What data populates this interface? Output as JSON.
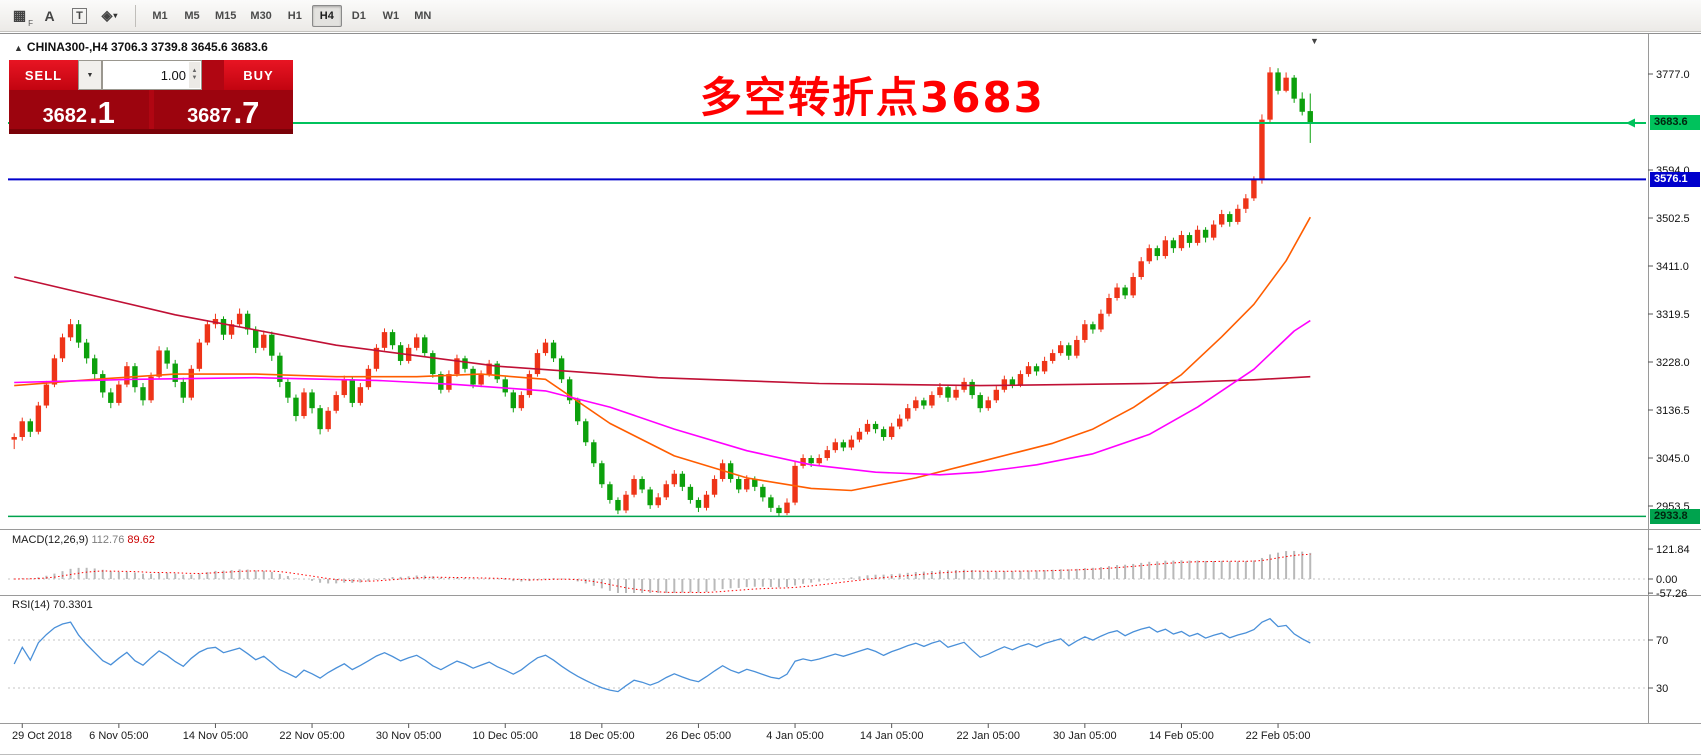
{
  "toolbar": {
    "tools": [
      {
        "name": "chart-grid-icon",
        "glyph": "▦",
        "sub": "F"
      },
      {
        "name": "text-annotation-icon",
        "glyph": "A"
      },
      {
        "name": "text-box-tool-icon",
        "glyph": "T",
        "boxed": true
      },
      {
        "name": "shapes-tool-icon",
        "glyph": "◈",
        "caret": true
      }
    ],
    "timeframes": [
      "M1",
      "M5",
      "M15",
      "M30",
      "H1",
      "H4",
      "D1",
      "W1",
      "MN"
    ],
    "active_timeframe": "H4"
  },
  "chart": {
    "title": "CHINA300-,H4  3706.3 3739.8 3645.6 3683.6",
    "annotation": "多空转折点3683",
    "trade_panel": {
      "sell_label": "SELL",
      "buy_label": "BUY",
      "volume": "1.00",
      "bid_int": "3682",
      "bid_dec": ".1",
      "ask_int": "3687",
      "ask_dec": ".7"
    },
    "price_axis": {
      "labels": [
        "3777.0",
        "3594.0",
        "3502.5",
        "3411.0",
        "3319.5",
        "3228.0",
        "3136.5",
        "3045.0",
        "2953.5"
      ]
    },
    "hlines": [
      {
        "price": 3683.6,
        "label": "3683.6",
        "color": "#00c25c",
        "text_color": "#00260f",
        "width": 2,
        "arrow": true
      },
      {
        "price": 3576.1,
        "label": "3576.1",
        "color": "#0000cc",
        "text_color": "#ffffff",
        "width": 2,
        "arrow": false
      },
      {
        "price": 2933.8,
        "label": "2933.8",
        "color": "#00a34e",
        "text_color": "#00260f",
        "width": 1.5,
        "arrow": false
      }
    ],
    "time_axis": [
      {
        "label": "29 Oct 2018",
        "idx": 1
      },
      {
        "label": "6 Nov 05:00",
        "idx": 13
      },
      {
        "label": "14 Nov 05:00",
        "idx": 25
      },
      {
        "label": "22 Nov 05:00",
        "idx": 37
      },
      {
        "label": "30 Nov 05:00",
        "idx": 49
      },
      {
        "label": "10 Dec 05:00",
        "idx": 61
      },
      {
        "label": "18 Dec 05:00",
        "idx": 73
      },
      {
        "label": "26 Dec 05:00",
        "idx": 85
      },
      {
        "label": "4 Jan 05:00",
        "idx": 97
      },
      {
        "label": "14 Jan 05:00",
        "idx": 109
      },
      {
        "label": "22 Jan 05:00",
        "idx": 121
      },
      {
        "label": "30 Jan 05:00",
        "idx": 133
      },
      {
        "label": "14 Feb 05:00",
        "idx": 145
      },
      {
        "label": "22 Feb 05:00",
        "idx": 157
      }
    ]
  },
  "chart_data": {
    "type": "candlestick",
    "symbol": "CHINA300-",
    "timeframe": "H4",
    "colors": {
      "up": "#ee3418",
      "down": "#0ca00c"
    },
    "candles": [
      [
        3080,
        3092,
        3062,
        3085
      ],
      [
        3085,
        3122,
        3078,
        3115
      ],
      [
        3115,
        3120,
        3085,
        3095
      ],
      [
        3095,
        3152,
        3090,
        3145
      ],
      [
        3145,
        3192,
        3140,
        3185
      ],
      [
        3185,
        3242,
        3180,
        3235
      ],
      [
        3235,
        3282,
        3228,
        3275
      ],
      [
        3275,
        3310,
        3268,
        3300
      ],
      [
        3300,
        3308,
        3255,
        3265
      ],
      [
        3265,
        3272,
        3225,
        3235
      ],
      [
        3235,
        3242,
        3195,
        3205
      ],
      [
        3205,
        3212,
        3160,
        3170
      ],
      [
        3170,
        3178,
        3140,
        3150
      ],
      [
        3150,
        3192,
        3145,
        3185
      ],
      [
        3185,
        3228,
        3180,
        3220
      ],
      [
        3220,
        3226,
        3170,
        3180
      ],
      [
        3180,
        3188,
        3145,
        3155
      ],
      [
        3155,
        3208,
        3150,
        3200
      ],
      [
        3200,
        3258,
        3195,
        3250
      ],
      [
        3250,
        3256,
        3215,
        3225
      ],
      [
        3225,
        3232,
        3180,
        3190
      ],
      [
        3190,
        3198,
        3150,
        3160
      ],
      [
        3160,
        3222,
        3155,
        3215
      ],
      [
        3215,
        3272,
        3210,
        3265
      ],
      [
        3265,
        3308,
        3260,
        3300
      ],
      [
        3300,
        3320,
        3292,
        3310
      ],
      [
        3310,
        3315,
        3270,
        3280
      ],
      [
        3280,
        3308,
        3272,
        3300
      ],
      [
        3300,
        3330,
        3295,
        3320
      ],
      [
        3320,
        3326,
        3280,
        3290
      ],
      [
        3290,
        3296,
        3245,
        3255
      ],
      [
        3255,
        3288,
        3250,
        3280
      ],
      [
        3280,
        3286,
        3230,
        3240
      ],
      [
        3240,
        3246,
        3180,
        3190
      ],
      [
        3190,
        3198,
        3150,
        3160
      ],
      [
        3160,
        3166,
        3115,
        3125
      ],
      [
        3125,
        3178,
        3120,
        3170
      ],
      [
        3170,
        3176,
        3130,
        3140
      ],
      [
        3140,
        3146,
        3090,
        3100
      ],
      [
        3100,
        3142,
        3095,
        3135
      ],
      [
        3135,
        3172,
        3130,
        3165
      ],
      [
        3165,
        3202,
        3160,
        3195
      ],
      [
        3195,
        3200,
        3142,
        3150
      ],
      [
        3150,
        3188,
        3145,
        3180
      ],
      [
        3180,
        3222,
        3175,
        3215
      ],
      [
        3215,
        3262,
        3210,
        3255
      ],
      [
        3255,
        3292,
        3250,
        3285
      ],
      [
        3285,
        3290,
        3252,
        3260
      ],
      [
        3260,
        3266,
        3222,
        3230
      ],
      [
        3230,
        3262,
        3225,
        3255
      ],
      [
        3255,
        3282,
        3250,
        3275
      ],
      [
        3275,
        3280,
        3238,
        3245
      ],
      [
        3245,
        3250,
        3198,
        3205
      ],
      [
        3205,
        3210,
        3168,
        3175
      ],
      [
        3175,
        3212,
        3170,
        3205
      ],
      [
        3205,
        3242,
        3200,
        3235
      ],
      [
        3235,
        3240,
        3208,
        3215
      ],
      [
        3215,
        3220,
        3178,
        3185
      ],
      [
        3185,
        3212,
        3180,
        3205
      ],
      [
        3205,
        3232,
        3200,
        3225
      ],
      [
        3225,
        3230,
        3188,
        3195
      ],
      [
        3195,
        3200,
        3162,
        3170
      ],
      [
        3170,
        3175,
        3132,
        3140
      ],
      [
        3140,
        3172,
        3135,
        3165
      ],
      [
        3165,
        3212,
        3160,
        3205
      ],
      [
        3205,
        3252,
        3200,
        3245
      ],
      [
        3245,
        3272,
        3240,
        3265
      ],
      [
        3265,
        3270,
        3228,
        3235
      ],
      [
        3235,
        3240,
        3188,
        3195
      ],
      [
        3195,
        3200,
        3148,
        3155
      ],
      [
        3155,
        3160,
        3108,
        3115
      ],
      [
        3115,
        3120,
        3068,
        3075
      ],
      [
        3075,
        3080,
        3028,
        3035
      ],
      [
        3035,
        3040,
        2988,
        2995
      ],
      [
        2995,
        3000,
        2958,
        2965
      ],
      [
        2965,
        2970,
        2938,
        2945
      ],
      [
        2945,
        2982,
        2940,
        2975
      ],
      [
        2975,
        3012,
        2970,
        3005
      ],
      [
        3005,
        3010,
        2978,
        2985
      ],
      [
        2985,
        2990,
        2948,
        2955
      ],
      [
        2955,
        2978,
        2950,
        2970
      ],
      [
        2970,
        3002,
        2965,
        2995
      ],
      [
        2995,
        3022,
        2990,
        3015
      ],
      [
        3015,
        3020,
        2982,
        2990
      ],
      [
        2990,
        2995,
        2958,
        2965
      ],
      [
        2965,
        2970,
        2942,
        2950
      ],
      [
        2950,
        2982,
        2945,
        2975
      ],
      [
        2975,
        3012,
        2970,
        3005
      ],
      [
        3005,
        3042,
        3000,
        3035
      ],
      [
        3035,
        3040,
        2998,
        3005
      ],
      [
        3005,
        3010,
        2978,
        2985
      ],
      [
        2985,
        3012,
        2980,
        3005
      ],
      [
        3005,
        3010,
        2982,
        2990
      ],
      [
        2990,
        2995,
        2962,
        2970
      ],
      [
        2970,
        2975,
        2942,
        2950
      ],
      [
        2950,
        2955,
        2933.8,
        2940
      ],
      [
        2940,
        2968,
        2936,
        2960
      ],
      [
        2960,
        3038,
        2955,
        3030
      ],
      [
        3030,
        3052,
        3025,
        3045
      ],
      [
        3045,
        3050,
        3028,
        3035
      ],
      [
        3035,
        3052,
        3030,
        3045
      ],
      [
        3045,
        3068,
        3040,
        3060
      ],
      [
        3060,
        3082,
        3055,
        3075
      ],
      [
        3075,
        3080,
        3058,
        3065
      ],
      [
        3065,
        3088,
        3060,
        3080
      ],
      [
        3080,
        3102,
        3075,
        3095
      ],
      [
        3095,
        3118,
        3090,
        3110
      ],
      [
        3110,
        3115,
        3092,
        3100
      ],
      [
        3100,
        3105,
        3078,
        3085
      ],
      [
        3085,
        3112,
        3080,
        3105
      ],
      [
        3105,
        3128,
        3100,
        3120
      ],
      [
        3120,
        3148,
        3115,
        3140
      ],
      [
        3140,
        3162,
        3135,
        3155
      ],
      [
        3155,
        3160,
        3138,
        3145
      ],
      [
        3145,
        3172,
        3140,
        3165
      ],
      [
        3165,
        3188,
        3160,
        3180
      ],
      [
        3180,
        3185,
        3152,
        3160
      ],
      [
        3160,
        3182,
        3155,
        3175
      ],
      [
        3175,
        3198,
        3170,
        3190
      ],
      [
        3190,
        3195,
        3158,
        3165
      ],
      [
        3165,
        3170,
        3132,
        3140
      ],
      [
        3140,
        3162,
        3135,
        3155
      ],
      [
        3155,
        3182,
        3150,
        3175
      ],
      [
        3175,
        3202,
        3170,
        3195
      ],
      [
        3195,
        3200,
        3178,
        3185
      ],
      [
        3185,
        3212,
        3180,
        3205
      ],
      [
        3205,
        3228,
        3200,
        3220
      ],
      [
        3220,
        3225,
        3202,
        3210
      ],
      [
        3210,
        3238,
        3205,
        3230
      ],
      [
        3230,
        3252,
        3225,
        3245
      ],
      [
        3245,
        3268,
        3240,
        3260
      ],
      [
        3260,
        3265,
        3232,
        3240
      ],
      [
        3240,
        3278,
        3235,
        3270
      ],
      [
        3270,
        3308,
        3265,
        3300
      ],
      [
        3300,
        3305,
        3282,
        3290
      ],
      [
        3290,
        3328,
        3285,
        3320
      ],
      [
        3320,
        3358,
        3315,
        3350
      ],
      [
        3350,
        3378,
        3345,
        3370
      ],
      [
        3370,
        3375,
        3348,
        3355
      ],
      [
        3355,
        3398,
        3350,
        3390
      ],
      [
        3390,
        3428,
        3385,
        3420
      ],
      [
        3420,
        3452,
        3415,
        3445
      ],
      [
        3445,
        3450,
        3422,
        3430
      ],
      [
        3430,
        3468,
        3425,
        3460
      ],
      [
        3460,
        3465,
        3436,
        3445
      ],
      [
        3445,
        3478,
        3440,
        3470
      ],
      [
        3470,
        3475,
        3446,
        3455
      ],
      [
        3455,
        3488,
        3450,
        3480
      ],
      [
        3480,
        3485,
        3456,
        3465
      ],
      [
        3465,
        3498,
        3460,
        3490
      ],
      [
        3490,
        3518,
        3485,
        3510
      ],
      [
        3510,
        3515,
        3486,
        3495
      ],
      [
        3495,
        3528,
        3490,
        3520
      ],
      [
        3520,
        3548,
        3512,
        3540
      ],
      [
        3540,
        3582,
        3535,
        3575
      ],
      [
        3575,
        3700,
        3568,
        3690
      ],
      [
        3690,
        3790,
        3685,
        3780
      ],
      [
        3780,
        3788,
        3738,
        3745
      ],
      [
        3745,
        3780,
        3742,
        3770
      ],
      [
        3770,
        3775,
        3722,
        3730
      ],
      [
        3730,
        3742,
        3698,
        3705
      ],
      [
        3706.3,
        3739.8,
        3645.6,
        3683.6
      ]
    ],
    "ma_lines": [
      {
        "name": "ma-long-crimson",
        "color": "#c01035",
        "points": [
          [
            0,
            3390
          ],
          [
            20,
            3318
          ],
          [
            40,
            3260
          ],
          [
            60,
            3220
          ],
          [
            80,
            3198
          ],
          [
            100,
            3187
          ],
          [
            120,
            3183
          ],
          [
            141,
            3187
          ],
          [
            154,
            3194
          ],
          [
            161,
            3200
          ]
        ]
      },
      {
        "name": "ma-mid-orange",
        "color": "#ff5d00",
        "points": [
          [
            0,
            3183
          ],
          [
            10,
            3195
          ],
          [
            20,
            3205
          ],
          [
            30,
            3205
          ],
          [
            40,
            3200
          ],
          [
            50,
            3200
          ],
          [
            58,
            3205
          ],
          [
            66,
            3195
          ],
          [
            74,
            3111
          ],
          [
            82,
            3049
          ],
          [
            91,
            3007
          ],
          [
            99,
            2987
          ],
          [
            104,
            2983
          ],
          [
            112,
            3007
          ],
          [
            120,
            3038
          ],
          [
            129,
            3073
          ],
          [
            134,
            3100
          ],
          [
            139,
            3141
          ],
          [
            145,
            3204
          ],
          [
            150,
            3276
          ],
          [
            154,
            3338
          ],
          [
            158,
            3421
          ],
          [
            161,
            3504
          ]
        ]
      },
      {
        "name": "ma-slow-magenta",
        "color": "#ff00ff",
        "points": [
          [
            0,
            3189
          ],
          [
            15,
            3195
          ],
          [
            30,
            3198
          ],
          [
            45,
            3193
          ],
          [
            55,
            3185
          ],
          [
            66,
            3173
          ],
          [
            74,
            3142
          ],
          [
            82,
            3100
          ],
          [
            91,
            3059
          ],
          [
            99,
            3032
          ],
          [
            107,
            3018
          ],
          [
            115,
            3013
          ],
          [
            120,
            3018
          ],
          [
            127,
            3032
          ],
          [
            134,
            3053
          ],
          [
            141,
            3090
          ],
          [
            147,
            3142
          ],
          [
            154,
            3214
          ],
          [
            159,
            3287
          ],
          [
            161,
            3307
          ]
        ]
      }
    ],
    "macd": {
      "label": "MACD(12,26,9)",
      "main_value": "112.76",
      "signal_value": "89.62",
      "params": [
        12,
        26,
        9
      ],
      "axis": [
        {
          "v": 121.84,
          "label": "121.84"
        },
        {
          "v": 0,
          "label": "0.00"
        },
        {
          "v": -57.26,
          "label": "-57.26"
        }
      ],
      "histogram_color": "#b9b9b9",
      "signal_color": "#ff0000"
    },
    "rsi": {
      "label": "RSI(14)",
      "value": "70.3301",
      "period": 14,
      "levels": [
        70,
        30
      ],
      "color": "#4a90d9"
    }
  }
}
